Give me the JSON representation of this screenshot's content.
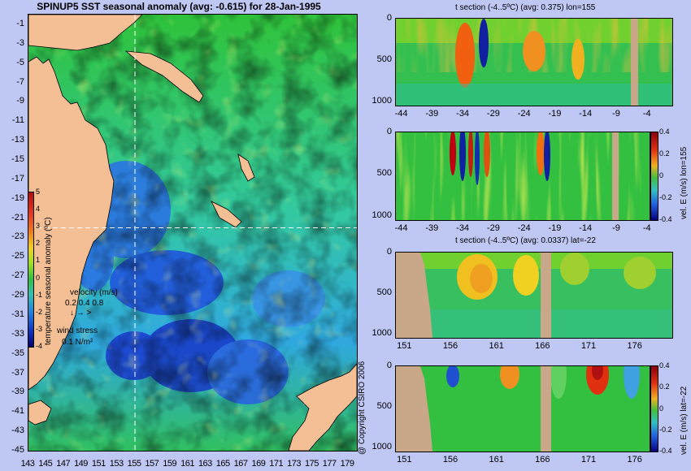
{
  "chart_data": [
    {
      "type": "heatmap",
      "title": "SPINUP5 SST seasonal anomaly (avg: -0.615) for 28-Jan-1995",
      "x_ticks": [
        "143",
        "145",
        "147",
        "149",
        "151",
        "153",
        "155",
        "157",
        "159",
        "161",
        "163",
        "165",
        "167",
        "169",
        "171",
        "173",
        "175",
        "177",
        "179"
      ],
      "y_ticks": [
        "-1",
        "-3",
        "-5",
        "-7",
        "-9",
        "-11",
        "-13",
        "-15",
        "-17",
        "-19",
        "-21",
        "-23",
        "-25",
        "-27",
        "-29",
        "-31",
        "-33",
        "-35",
        "-37",
        "-39",
        "-41",
        "-43",
        "-45"
      ],
      "xlim": [
        143,
        180
      ],
      "ylim": [
        -45,
        0
      ],
      "crosshair": {
        "lon": 155,
        "lat": -22
      },
      "colorbar": {
        "label": "temperature seasonal anomaly (ºC)",
        "ticks": [
          "5",
          "4",
          "3",
          "2",
          "1",
          "0",
          "-1",
          "-2",
          "-3",
          "-4"
        ],
        "range": [
          -4,
          5
        ]
      },
      "legend": {
        "velocity_label": "velocity (m/s)",
        "velocity_scale": "0.2 0.4 0.8",
        "wind_label": "wind stress",
        "wind_scale": "0.1 N/m²"
      }
    },
    {
      "type": "heatmap",
      "title": "t section (-4..5ºC) (avg: 0.375) lon=155",
      "x_ticks": [
        "-44",
        "-39",
        "-34",
        "-29",
        "-24",
        "-19",
        "-14",
        "-9",
        "-4"
      ],
      "y_ticks": [
        "0",
        "500",
        "1000"
      ],
      "xlim": [
        -45,
        0
      ],
      "ylim": [
        1050,
        0
      ]
    },
    {
      "type": "heatmap",
      "title": "",
      "x_ticks": [
        "-44",
        "-39",
        "-34",
        "-29",
        "-24",
        "-19",
        "-14",
        "-9",
        "-4"
      ],
      "y_ticks": [
        "0",
        "500",
        "1000"
      ],
      "xlim": [
        -45,
        0
      ],
      "ylim": [
        1050,
        0
      ],
      "colorbar": {
        "label": "vel. E (m/s) lon=155",
        "ticks": [
          "0.4",
          "0.2",
          "0",
          "-0.2",
          "-0.4"
        ],
        "range": [
          -0.4,
          0.4
        ]
      }
    },
    {
      "type": "heatmap",
      "title": "t section (-4..5ºC) (avg: 0.0337) lat=-22",
      "x_ticks": [
        "151",
        "156",
        "161",
        "166",
        "171",
        "176"
      ],
      "y_ticks": [
        "0",
        "500",
        "1000"
      ],
      "xlim": [
        150,
        180
      ],
      "ylim": [
        1050,
        0
      ]
    },
    {
      "type": "heatmap",
      "title": "",
      "x_ticks": [
        "151",
        "156",
        "161",
        "166",
        "171",
        "176"
      ],
      "y_ticks": [
        "0",
        "500",
        "1000"
      ],
      "xlim": [
        150,
        180
      ],
      "ylim": [
        1050,
        0
      ],
      "colorbar": {
        "label": "vel. E (m/s) lat=-22",
        "ticks": [
          "0.4",
          "0.2",
          "0",
          "-0.2",
          "-0.4"
        ],
        "range": [
          -0.4,
          0.4
        ]
      }
    }
  ],
  "copyright": "@ Copyright CSIRO 2006",
  "colors": {
    "background": "#bfc7f4",
    "land": "#f5bf96",
    "section_land": "#c8a888",
    "ocean_mid": "#30c030"
  }
}
